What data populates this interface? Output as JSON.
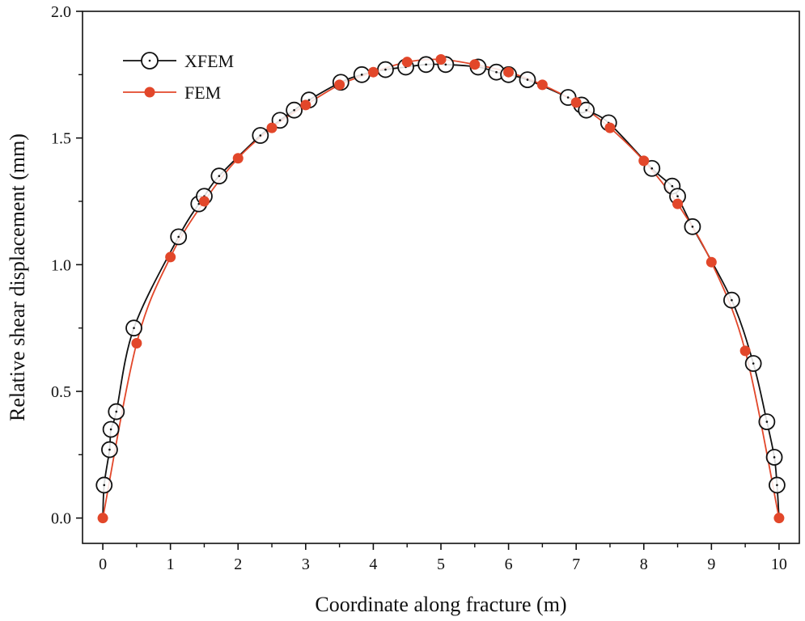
{
  "chart_data": {
    "type": "line",
    "title": "",
    "xlabel": "Coordinate along fracture (m)",
    "ylabel": "Relative shear displacement (mm)",
    "xlim": [
      -0.3,
      10.3
    ],
    "ylim": [
      -0.1,
      2.0
    ],
    "xticks": [
      0,
      1,
      2,
      3,
      4,
      5,
      6,
      7,
      8,
      9,
      10
    ],
    "yticks": [
      0.0,
      0.5,
      1.0,
      1.5,
      2.0
    ],
    "xtick_labels": [
      "0",
      "1",
      "2",
      "3",
      "4",
      "5",
      "6",
      "7",
      "8",
      "9",
      "10"
    ],
    "ytick_labels": [
      "0.0",
      "0.5",
      "1.0",
      "1.5",
      "2.0"
    ],
    "grid": false,
    "legend_position": "top-left",
    "series": [
      {
        "name": "XFEM",
        "line_color": "#111111",
        "marker": "open-circle-dot",
        "x": [
          0.02,
          0.1,
          0.12,
          0.2,
          0.46,
          1.12,
          1.42,
          1.5,
          1.72,
          2.33,
          2.62,
          2.83,
          3.05,
          3.52,
          3.83,
          4.18,
          4.48,
          4.78,
          5.07,
          5.55,
          5.82,
          6.0,
          6.28,
          6.88,
          7.08,
          7.15,
          7.48,
          8.12,
          8.42,
          8.5,
          8.72,
          9.3,
          9.62,
          9.82,
          9.93,
          9.97
        ],
        "values": [
          0.13,
          0.27,
          0.35,
          0.42,
          0.75,
          1.11,
          1.24,
          1.27,
          1.35,
          1.51,
          1.57,
          1.61,
          1.65,
          1.72,
          1.75,
          1.77,
          1.78,
          1.79,
          1.79,
          1.78,
          1.76,
          1.75,
          1.73,
          1.66,
          1.63,
          1.61,
          1.56,
          1.38,
          1.31,
          1.27,
          1.15,
          0.86,
          0.61,
          0.38,
          0.24,
          0.13
        ]
      },
      {
        "name": "FEM",
        "line_color": "#e2472a",
        "marker": "filled-circle",
        "x": [
          0.0,
          0.5,
          1.0,
          1.5,
          2.0,
          2.5,
          3.0,
          3.5,
          4.0,
          4.5,
          5.0,
          5.5,
          6.0,
          6.5,
          7.0,
          7.5,
          8.0,
          8.5,
          9.0,
          9.5,
          10.0
        ],
        "values": [
          0.0,
          0.69,
          1.03,
          1.25,
          1.42,
          1.54,
          1.63,
          1.71,
          1.76,
          1.8,
          1.81,
          1.79,
          1.76,
          1.71,
          1.64,
          1.54,
          1.41,
          1.24,
          1.01,
          0.66,
          0.0
        ]
      }
    ]
  }
}
